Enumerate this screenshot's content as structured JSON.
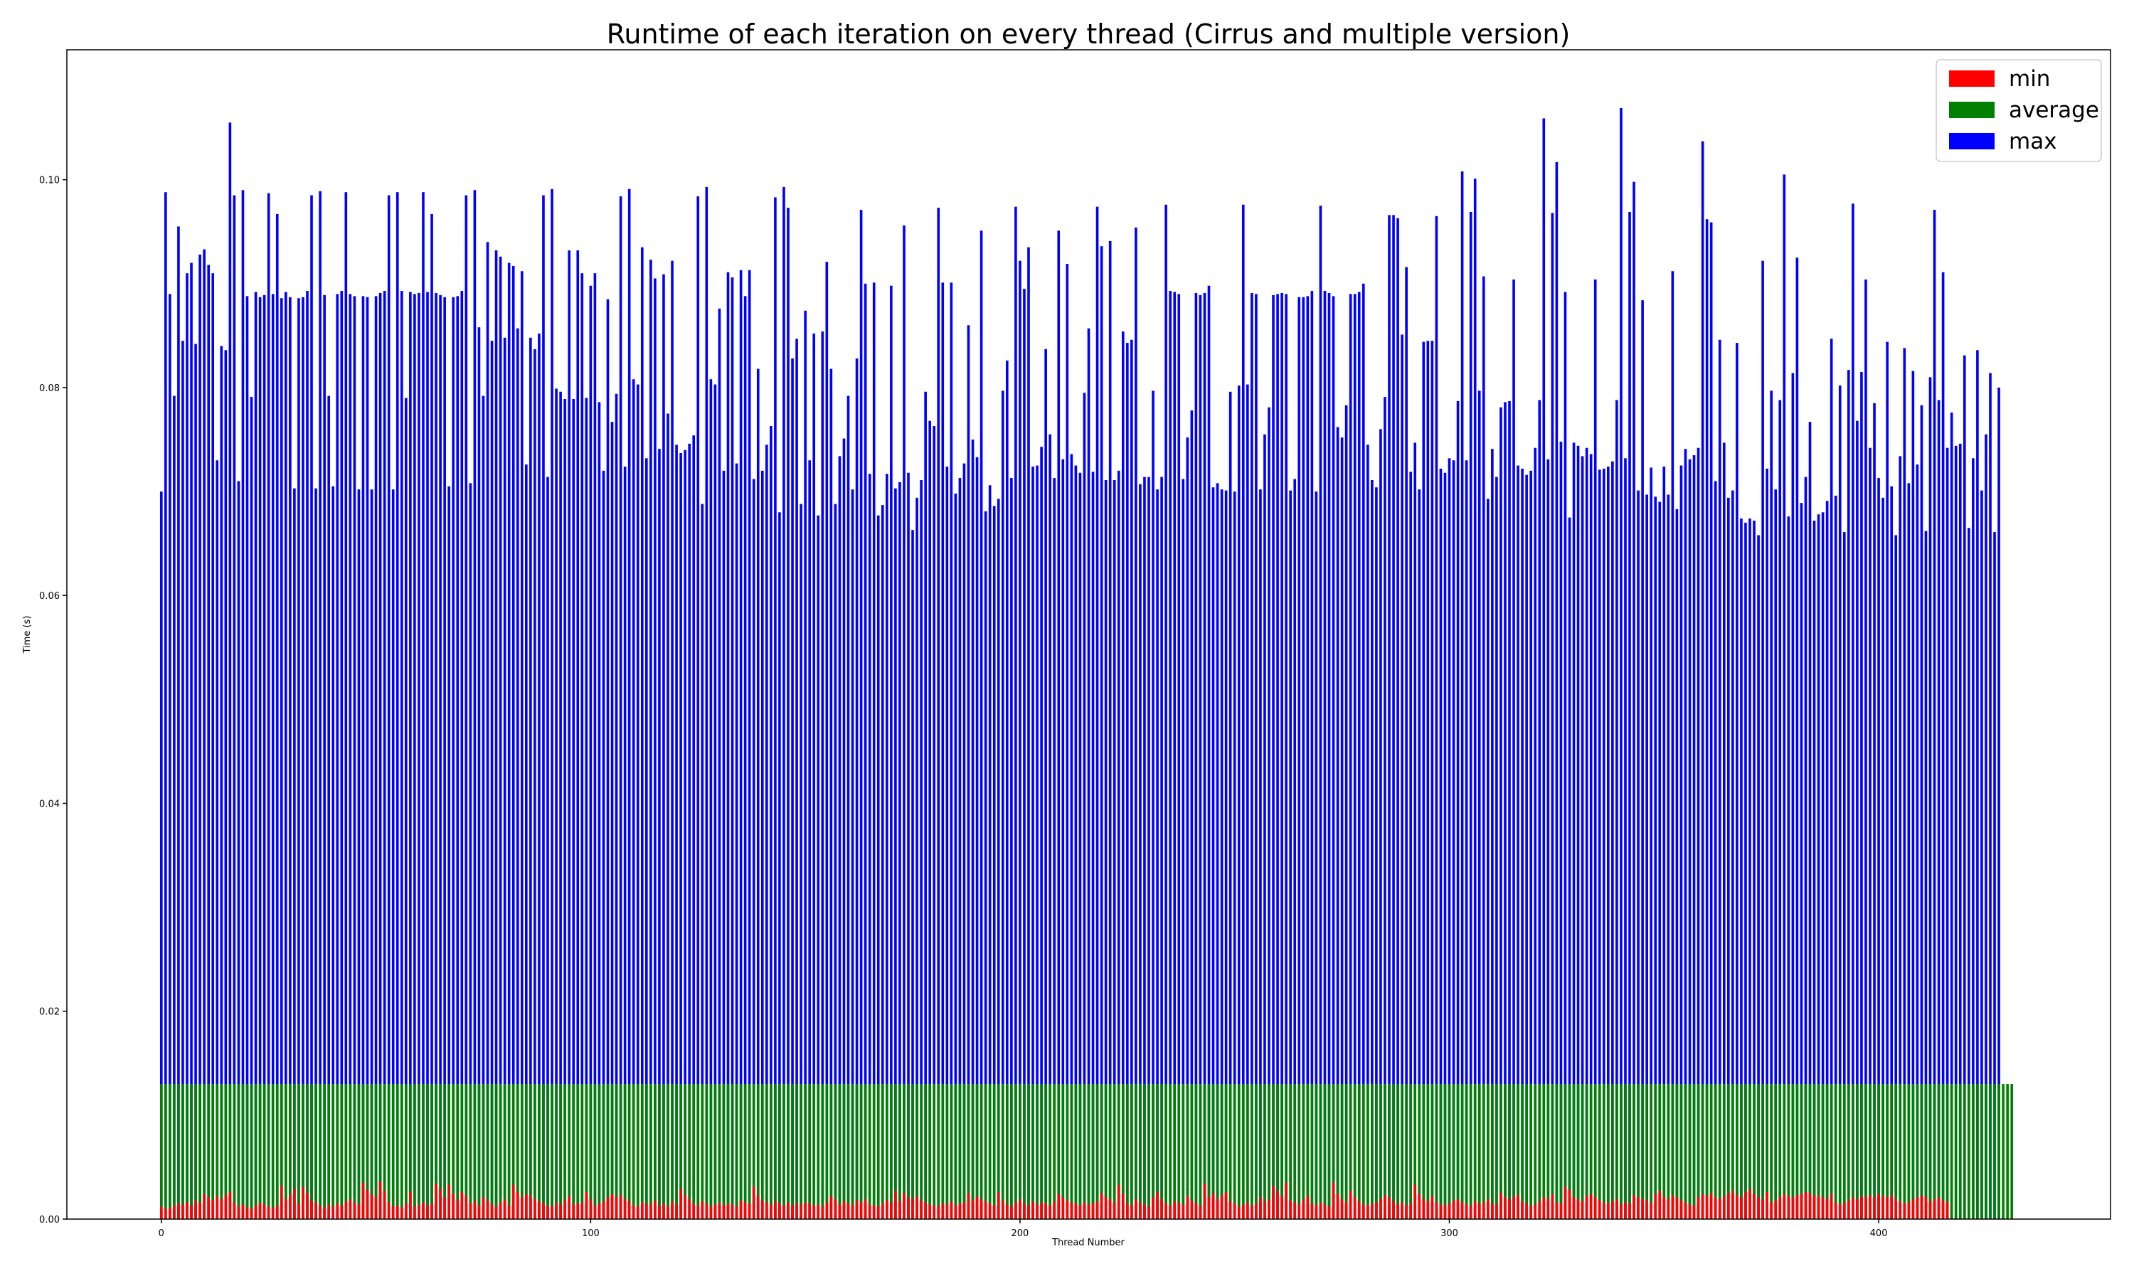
{
  "chart_data": {
    "type": "bar",
    "title": "Runtime of each iteration on every thread (Cirrus and multiple version)",
    "xlabel": "Thread Number",
    "ylabel": "Time (s)",
    "xlim": [
      -22,
      454
    ],
    "ylim": [
      0,
      0.1125
    ],
    "xticks": [
      0,
      100,
      200,
      300,
      400
    ],
    "yticks": [
      0.0,
      0.02,
      0.04,
      0.06,
      0.08,
      0.1
    ],
    "ytick_labels": [
      "0.00",
      "0.02",
      "0.04",
      "0.06",
      "0.08",
      "0.10"
    ],
    "grid": false,
    "legend_position": "upper-right",
    "overlay": "series drawn on top of each other in order max, average, min",
    "n_threads": 432,
    "x_start": 0,
    "bar_width": 0.6,
    "series": [
      {
        "name": "max",
        "color": "#0000ff",
        "values": [
          0.07,
          0.0988,
          0.089,
          0.0792,
          0.0955,
          0.0845,
          0.091,
          0.092,
          0.0842,
          0.0928,
          0.0933,
          0.0918,
          0.091,
          0.073,
          0.084,
          0.0836,
          0.1055,
          0.0985,
          0.071,
          0.099,
          0.0888,
          0.0791,
          0.0892,
          0.0887,
          0.0889,
          0.0987,
          0.089,
          0.0967,
          0.0886,
          0.0892,
          0.0887,
          0.0703,
          0.0886,
          0.0887,
          0.0893,
          0.0985,
          0.0703,
          0.0989,
          0.0889,
          0.0792,
          0.0705,
          0.089,
          0.0893,
          0.0988,
          0.089,
          0.0888,
          0.0702,
          0.0888,
          0.0887,
          0.0702,
          0.0888,
          0.0891,
          0.0893,
          0.0985,
          0.0702,
          0.0988,
          0.0893,
          0.079,
          0.0892,
          0.089,
          0.0891,
          0.0988,
          0.0892,
          0.0967,
          0.0891,
          0.0889,
          0.0887,
          0.0705,
          0.0887,
          0.0888,
          0.0893,
          0.0985,
          0.0708,
          0.099,
          0.0858,
          0.0792,
          0.094,
          0.0845,
          0.0932,
          0.0926,
          0.0848,
          0.092,
          0.0917,
          0.0857,
          0.0912,
          0.0726,
          0.0848,
          0.0837,
          0.0852,
          0.0985,
          0.0714,
          0.0991,
          0.0799,
          0.0796,
          0.0789,
          0.0932,
          0.0789,
          0.0932,
          0.091,
          0.079,
          0.0898,
          0.091,
          0.0786,
          0.072,
          0.0885,
          0.0767,
          0.0794,
          0.0984,
          0.0724,
          0.0991,
          0.0808,
          0.0803,
          0.0935,
          0.0732,
          0.0923,
          0.0905,
          0.0741,
          0.0909,
          0.0775,
          0.0922,
          0.0745,
          0.0737,
          0.074,
          0.0746,
          0.0754,
          0.0984,
          0.0688,
          0.0993,
          0.0808,
          0.0803,
          0.0876,
          0.072,
          0.0911,
          0.0906,
          0.0727,
          0.0913,
          0.0888,
          0.0913,
          0.0712,
          0.0818,
          0.072,
          0.0745,
          0.0763,
          0.0983,
          0.068,
          0.0993,
          0.0973,
          0.0828,
          0.0847,
          0.0688,
          0.0874,
          0.073,
          0.0852,
          0.0677,
          0.0854,
          0.0921,
          0.0818,
          0.0688,
          0.0734,
          0.0751,
          0.0792,
          0.0702,
          0.0828,
          0.0971,
          0.09,
          0.0717,
          0.0901,
          0.0677,
          0.0687,
          0.0717,
          0.0898,
          0.0703,
          0.0709,
          0.0956,
          0.0718,
          0.0663,
          0.0694,
          0.0711,
          0.0796,
          0.0768,
          0.0763,
          0.0973,
          0.0901,
          0.0724,
          0.0901,
          0.0698,
          0.0713,
          0.0727,
          0.086,
          0.075,
          0.0733,
          0.0951,
          0.0681,
          0.0706,
          0.0686,
          0.0693,
          0.0797,
          0.0826,
          0.0713,
          0.0974,
          0.0922,
          0.0895,
          0.0935,
          0.0724,
          0.0725,
          0.0743,
          0.0837,
          0.0755,
          0.0713,
          0.0951,
          0.0731,
          0.0919,
          0.0736,
          0.0725,
          0.0718,
          0.0795,
          0.0857,
          0.0719,
          0.0974,
          0.0936,
          0.0711,
          0.0941,
          0.0711,
          0.072,
          0.0854,
          0.0843,
          0.0846,
          0.0954,
          0.0707,
          0.0714,
          0.0714,
          0.0797,
          0.0702,
          0.0714,
          0.0976,
          0.0893,
          0.0892,
          0.089,
          0.0712,
          0.0752,
          0.0778,
          0.0891,
          0.0889,
          0.0891,
          0.0898,
          0.0704,
          0.0708,
          0.0702,
          0.0701,
          0.0796,
          0.07,
          0.0802,
          0.0976,
          0.0803,
          0.0891,
          0.089,
          0.0702,
          0.0755,
          0.0781,
          0.0889,
          0.089,
          0.0891,
          0.089,
          0.0701,
          0.0712,
          0.0887,
          0.0887,
          0.0888,
          0.0893,
          0.07,
          0.0975,
          0.0893,
          0.0891,
          0.0888,
          0.0762,
          0.0752,
          0.0783,
          0.089,
          0.089,
          0.0892,
          0.09,
          0.0745,
          0.0711,
          0.0704,
          0.076,
          0.0791,
          0.0966,
          0.0966,
          0.0963,
          0.0851,
          0.0916,
          0.0719,
          0.0747,
          0.0702,
          0.0844,
          0.0845,
          0.0845,
          0.0965,
          0.0722,
          0.0718,
          0.0732,
          0.073,
          0.0787,
          0.1008,
          0.073,
          0.0969,
          0.1001,
          0.0797,
          0.0907,
          0.0693,
          0.0741,
          0.0714,
          0.0781,
          0.0786,
          0.0787,
          0.0904,
          0.0725,
          0.0722,
          0.0716,
          0.072,
          0.0742,
          0.0788,
          0.1059,
          0.0731,
          0.0968,
          0.1017,
          0.0748,
          0.0892,
          0.0675,
          0.0747,
          0.0744,
          0.0734,
          0.0742,
          0.0736,
          0.0904,
          0.0721,
          0.0722,
          0.0724,
          0.0729,
          0.0788,
          0.1069,
          0.0732,
          0.0969,
          0.0998,
          0.0701,
          0.0884,
          0.0697,
          0.0723,
          0.0695,
          0.069,
          0.0724,
          0.0697,
          0.0912,
          0.0683,
          0.0725,
          0.0741,
          0.0731,
          0.0735,
          0.0742,
          0.1037,
          0.0962,
          0.0959,
          0.071,
          0.0846,
          0.0747,
          0.0694,
          0.0701,
          0.0843,
          0.0674,
          0.067,
          0.0674,
          0.0672,
          0.0658,
          0.0922,
          0.0722,
          0.0797,
          0.0702,
          0.0788,
          0.1005,
          0.0676,
          0.0814,
          0.0925,
          0.0689,
          0.0714,
          0.0767,
          0.0672,
          0.0678,
          0.068,
          0.0691,
          0.0847,
          0.0696,
          0.0802,
          0.0661,
          0.0817,
          0.0977,
          0.0768,
          0.0815,
          0.0904,
          0.0742,
          0.0785,
          0.0713,
          0.0694,
          0.0844,
          0.0705,
          0.0658,
          0.0734,
          0.0838,
          0.0708,
          0.0816,
          0.0726,
          0.0783,
          0.0662,
          0.081,
          0.0971,
          0.0788,
          0.0911,
          0.0742,
          0.0776,
          0.0744,
          0.0746,
          0.0831,
          0.0665,
          0.0732,
          0.0836,
          0.0701,
          0.0755,
          0.0814,
          0.0661,
          0.08
        ]
      },
      {
        "name": "average",
        "color": "#008000",
        "constant_value": 0.013
      },
      {
        "name": "min",
        "color": "#ff0000",
        "values": [
          0.0012,
          0.001,
          0.0011,
          0.0013,
          0.0015,
          0.0014,
          0.0016,
          0.0013,
          0.0018,
          0.0015,
          0.0024,
          0.0021,
          0.0018,
          0.0022,
          0.0019,
          0.0023,
          0.0026,
          0.0016,
          0.0012,
          0.0014,
          0.0011,
          0.001,
          0.0013,
          0.0016,
          0.0014,
          0.0012,
          0.0011,
          0.0013,
          0.0032,
          0.0019,
          0.0023,
          0.0029,
          0.0015,
          0.0031,
          0.0025,
          0.0018,
          0.0016,
          0.0013,
          0.0011,
          0.0014,
          0.0012,
          0.0015,
          0.0013,
          0.0017,
          0.0019,
          0.0016,
          0.0014,
          0.0035,
          0.0028,
          0.0024,
          0.0021,
          0.0036,
          0.0027,
          0.0016,
          0.0012,
          0.0013,
          0.0011,
          0.0015,
          0.0026,
          0.0012,
          0.0014,
          0.0016,
          0.0013,
          0.0015,
          0.0034,
          0.0029,
          0.0021,
          0.0033,
          0.0024,
          0.0018,
          0.0026,
          0.0022,
          0.0015,
          0.0017,
          0.0013,
          0.0021,
          0.0018,
          0.0014,
          0.0012,
          0.0016,
          0.0019,
          0.0013,
          0.0033,
          0.0026,
          0.0021,
          0.0024,
          0.0023,
          0.0019,
          0.0017,
          0.0015,
          0.0013,
          0.0012,
          0.0016,
          0.0014,
          0.0018,
          0.0022,
          0.0014,
          0.0015,
          0.0016,
          0.0026,
          0.0019,
          0.0013,
          0.0015,
          0.0017,
          0.0021,
          0.0024,
          0.0021,
          0.0023,
          0.0019,
          0.0017,
          0.0013,
          0.0012,
          0.0016,
          0.0015,
          0.0014,
          0.0018,
          0.0013,
          0.0015,
          0.0012,
          0.0017,
          0.0014,
          0.0029,
          0.0023,
          0.0019,
          0.0015,
          0.0013,
          0.0017,
          0.0015,
          0.0012,
          0.0014,
          0.0016,
          0.0013,
          0.0015,
          0.0014,
          0.0012,
          0.0018,
          0.0016,
          0.0015,
          0.0031,
          0.0023,
          0.0018,
          0.0016,
          0.0014,
          0.0017,
          0.0015,
          0.0013,
          0.0016,
          0.0013,
          0.0015,
          0.0014,
          0.0016,
          0.0015,
          0.0013,
          0.0014,
          0.0012,
          0.0016,
          0.0022,
          0.0019,
          0.0014,
          0.0017,
          0.0015,
          0.0013,
          0.0018,
          0.0016,
          0.0019,
          0.0014,
          0.0013,
          0.0012,
          0.0015,
          0.0018,
          0.0016,
          0.0027,
          0.0017,
          0.0025,
          0.0021,
          0.0019,
          0.0022,
          0.0018,
          0.0016,
          0.0014,
          0.0013,
          0.0012,
          0.0015,
          0.0014,
          0.0017,
          0.0013,
          0.0015,
          0.0016,
          0.0025,
          0.0018,
          0.0022,
          0.0019,
          0.0017,
          0.0015,
          0.0013,
          0.0026,
          0.0018,
          0.0014,
          0.0012,
          0.0016,
          0.0019,
          0.0015,
          0.0013,
          0.0017,
          0.0014,
          0.0016,
          0.0015,
          0.0013,
          0.0017,
          0.0024,
          0.0021,
          0.0018,
          0.0016,
          0.0015,
          0.0013,
          0.0016,
          0.0014,
          0.0015,
          0.0017,
          0.0025,
          0.0021,
          0.0019,
          0.0016,
          0.0033,
          0.0024,
          0.0015,
          0.0013,
          0.0019,
          0.0016,
          0.0014,
          0.0012,
          0.0021,
          0.0026,
          0.0019,
          0.0015,
          0.0013,
          0.0017,
          0.0016,
          0.0014,
          0.0022,
          0.0018,
          0.0015,
          0.0013,
          0.0034,
          0.0021,
          0.0025,
          0.0019,
          0.0023,
          0.0026,
          0.0017,
          0.0015,
          0.0012,
          0.0014,
          0.0016,
          0.0013,
          0.0015,
          0.0021,
          0.0017,
          0.0019,
          0.0032,
          0.0027,
          0.0022,
          0.0035,
          0.0018,
          0.0016,
          0.0014,
          0.0019,
          0.0022,
          0.0015,
          0.0013,
          0.0016,
          0.0014,
          0.0012,
          0.0035,
          0.0024,
          0.0019,
          0.0016,
          0.0027,
          0.0021,
          0.0017,
          0.0014,
          0.0013,
          0.0015,
          0.0016,
          0.0019,
          0.0023,
          0.0021,
          0.0017,
          0.0014,
          0.0016,
          0.0013,
          0.0015,
          0.0033,
          0.0024,
          0.0019,
          0.0017,
          0.0022,
          0.0016,
          0.0014,
          0.0013,
          0.0015,
          0.0018,
          0.0019,
          0.0016,
          0.0014,
          0.0013,
          0.0017,
          0.0015,
          0.0016,
          0.0019,
          0.0015,
          0.0014,
          0.0025,
          0.0021,
          0.0019,
          0.0022,
          0.0023,
          0.0017,
          0.0015,
          0.0013,
          0.0014,
          0.0017,
          0.0021,
          0.0019,
          0.0024,
          0.0016,
          0.0015,
          0.0031,
          0.0028,
          0.0021,
          0.0019,
          0.0017,
          0.0022,
          0.0024,
          0.0021,
          0.0018,
          0.0016,
          0.0015,
          0.0017,
          0.0019,
          0.0014,
          0.0016,
          0.0015,
          0.0023,
          0.0021,
          0.0019,
          0.0018,
          0.0016,
          0.0024,
          0.0027,
          0.0021,
          0.0019,
          0.0023,
          0.0021,
          0.0018,
          0.0016,
          0.0014,
          0.0013,
          0.0021,
          0.0024,
          0.0022,
          0.0025,
          0.0021,
          0.0019,
          0.0022,
          0.0025,
          0.0027,
          0.0023,
          0.0021,
          0.0026,
          0.0029,
          0.0024,
          0.0021,
          0.0019,
          0.0026,
          0.0016,
          0.0018,
          0.0021,
          0.0024,
          0.0022,
          0.0021,
          0.0023,
          0.0024,
          0.0026,
          0.0025,
          0.0022,
          0.0023,
          0.0021,
          0.0019,
          0.0024,
          0.0016,
          0.0014,
          0.0016,
          0.0018,
          0.0021,
          0.0019,
          0.0022,
          0.0021,
          0.0023,
          0.0021,
          0.0024,
          0.0022,
          0.0021,
          0.0023,
          0.0019,
          0.0017,
          0.0015,
          0.0016,
          0.0019,
          0.0021,
          0.0023,
          0.0021,
          0.0017,
          0.0019,
          0.0021,
          0.0018,
          0.0016
        ]
      }
    ],
    "legend": [
      {
        "label": "min",
        "color": "#ff0000"
      },
      {
        "label": "average",
        "color": "#008000"
      },
      {
        "label": "max",
        "color": "#0000ff"
      }
    ]
  }
}
